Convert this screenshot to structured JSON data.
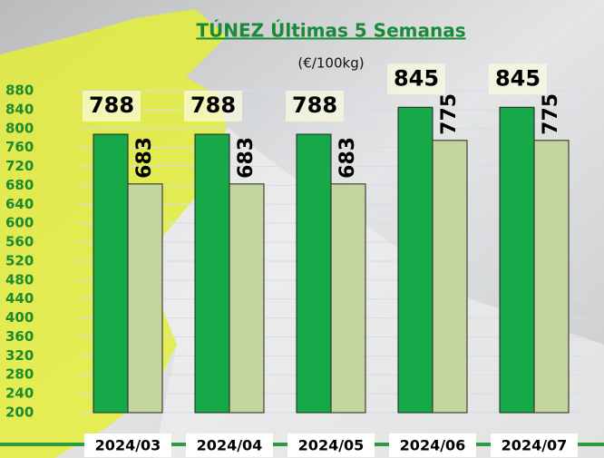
{
  "chart_data": {
    "type": "bar",
    "title": "TÚNEZ Últimas 5 Semanas",
    "subtitle": "(€/100kg)",
    "categories": [
      "2024/03",
      "2024/04",
      "2024/05",
      "2024/06",
      "2024/07"
    ],
    "series": [
      {
        "color": "#17a84a",
        "values": [
          788,
          788,
          788,
          845,
          845
        ]
      },
      {
        "color": "#c4d59f",
        "values": [
          683,
          683,
          683,
          775,
          775
        ]
      }
    ],
    "ylim": [
      200,
      880
    ],
    "yticks": [
      200,
      240,
      280,
      320,
      360,
      400,
      440,
      480,
      520,
      560,
      600,
      640,
      680,
      720,
      760,
      800,
      840,
      880
    ],
    "grid": true
  }
}
